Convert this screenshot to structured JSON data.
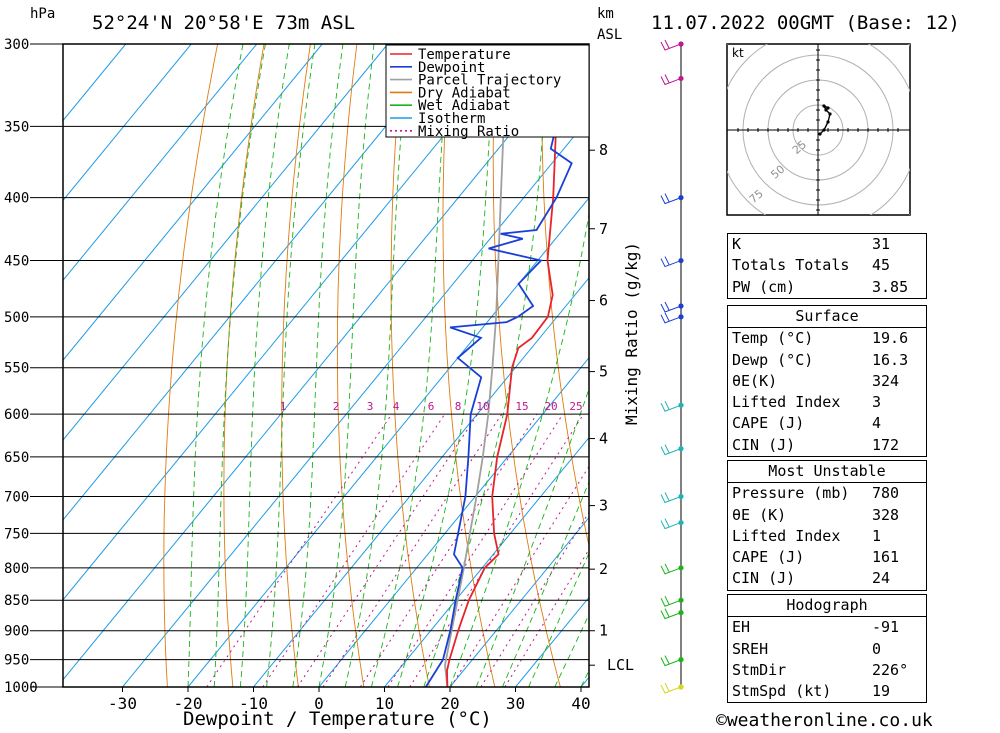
{
  "header": {
    "units_left": "hPa",
    "location": "52°24'N  20°58'E  73m  ASL",
    "units_right_top": "km",
    "units_right_bottom": "ASL",
    "datetime": "11.07.2022  00GMT  (Base: 12)"
  },
  "footer": {
    "copyright": "©weatheronline.co.uk"
  },
  "colors": {
    "temperature": "#e8232a",
    "dewpoint": "#1a3fd6",
    "parcel": "#a0a0a0",
    "dry_adiabat": "#e07b10",
    "wet_adiabat": "#18b418",
    "isotherm": "#1e9be6",
    "mixing_ratio": "#c0178f"
  },
  "chart_data": [
    {
      "type": "line",
      "name": "skew-T log-P diagram",
      "xlabel": "Dewpoint / Temperature (°C)",
      "ylabel": "hPa",
      "right_axis_label": "km ASL",
      "mixing_ratio_label": "Mixing Ratio (g/kg)",
      "xlim": [
        -40,
        40
      ],
      "x_ticks": [
        -30,
        -20,
        -10,
        0,
        10,
        20,
        30,
        40
      ],
      "y_scale": "log",
      "ylim": [
        1000,
        300
      ],
      "pressure_levels": [
        300,
        350,
        400,
        450,
        500,
        550,
        600,
        650,
        700,
        750,
        800,
        850,
        900,
        950,
        1000
      ],
      "height_ticks_km": [
        {
          "label": "1",
          "p": 900
        },
        {
          "label": "2",
          "p": 802
        },
        {
          "label": "3",
          "p": 712
        },
        {
          "label": "4",
          "p": 628
        },
        {
          "label": "5",
          "p": 554
        },
        {
          "label": "6",
          "p": 485
        },
        {
          "label": "7",
          "p": 424
        },
        {
          "label": "8",
          "p": 366
        }
      ],
      "lcl": {
        "label": "LCL",
        "p": 960
      },
      "mixing_ratio_labels": [
        "1",
        "2",
        "3",
        "4",
        "6",
        "8",
        "10",
        "15",
        "20",
        "25"
      ],
      "legend": [
        "Temperature",
        "Dewpoint",
        "Parcel Trajectory",
        "Dry Adiabat",
        "Wet Adiabat",
        "Isotherm",
        "Mixing Ratio"
      ],
      "series": [
        {
          "name": "Temperature",
          "points": [
            {
              "p": 1000,
              "t": 19.6
            },
            {
              "p": 970,
              "t": 17.5
            },
            {
              "p": 950,
              "t": 16.5
            },
            {
              "p": 900,
              "t": 14.2
            },
            {
              "p": 850,
              "t": 12.0
            },
            {
              "p": 800,
              "t": 10.4
            },
            {
              "p": 780,
              "t": 10.8
            },
            {
              "p": 750,
              "t": 7.5
            },
            {
              "p": 700,
              "t": 2.6
            },
            {
              "p": 650,
              "t": -1.6
            },
            {
              "p": 600,
              "t": -5.4
            },
            {
              "p": 550,
              "t": -10.5
            },
            {
              "p": 530,
              "t": -12.0
            },
            {
              "p": 520,
              "t": -11.2
            },
            {
              "p": 500,
              "t": -11.4
            },
            {
              "p": 480,
              "t": -13.4
            },
            {
              "p": 450,
              "t": -18.5
            },
            {
              "p": 400,
              "t": -25.5
            },
            {
              "p": 350,
              "t": -34.0
            },
            {
              "p": 330,
              "t": -37.0
            },
            {
              "p": 300,
              "t": -43.0
            }
          ]
        },
        {
          "name": "Dewpoint",
          "points": [
            {
              "p": 1000,
              "t": 16.3
            },
            {
              "p": 950,
              "t": 15.5
            },
            {
              "p": 900,
              "t": 13.0
            },
            {
              "p": 850,
              "t": 10.0
            },
            {
              "p": 800,
              "t": 7.0
            },
            {
              "p": 780,
              "t": 4.0
            },
            {
              "p": 750,
              "t": 2.0
            },
            {
              "p": 700,
              "t": -1.5
            },
            {
              "p": 650,
              "t": -6.0
            },
            {
              "p": 600,
              "t": -11.0
            },
            {
              "p": 560,
              "t": -14.0
            },
            {
              "p": 540,
              "t": -20.0
            },
            {
              "p": 520,
              "t": -19.0
            },
            {
              "p": 510,
              "t": -25.0
            },
            {
              "p": 505,
              "t": -17.0
            },
            {
              "p": 500,
              "t": -16.0
            },
            {
              "p": 490,
              "t": -15.0
            },
            {
              "p": 470,
              "t": -20.0
            },
            {
              "p": 450,
              "t": -19.5
            },
            {
              "p": 440,
              "t": -29.0
            },
            {
              "p": 432,
              "t": -25.0
            },
            {
              "p": 428,
              "t": -29.0
            },
            {
              "p": 425,
              "t": -24.0
            },
            {
              "p": 400,
              "t": -25.0
            },
            {
              "p": 375,
              "t": -27.0
            },
            {
              "p": 365,
              "t": -32.0
            },
            {
              "p": 350,
              "t": -34.0
            },
            {
              "p": 340,
              "t": -34.0
            },
            {
              "p": 330,
              "t": -39.0
            },
            {
              "p": 322,
              "t": -38.0
            },
            {
              "p": 300,
              "t": -52.0
            }
          ]
        },
        {
          "name": "Parcel Trajectory",
          "points": [
            {
              "p": 1000,
              "t": 19.6
            },
            {
              "p": 960,
              "t": 16.5
            },
            {
              "p": 900,
              "t": 13.2
            },
            {
              "p": 850,
              "t": 10.3
            },
            {
              "p": 800,
              "t": 7.2
            },
            {
              "p": 750,
              "t": 3.8
            },
            {
              "p": 700,
              "t": 0.2
            },
            {
              "p": 650,
              "t": -3.8
            },
            {
              "p": 600,
              "t": -8.3
            },
            {
              "p": 550,
              "t": -13.5
            },
            {
              "p": 500,
              "t": -19.3
            },
            {
              "p": 450,
              "t": -26.0
            },
            {
              "p": 400,
              "t": -33.5
            },
            {
              "p": 350,
              "t": -42.0
            },
            {
              "p": 300,
              "t": -52.0
            }
          ]
        }
      ]
    },
    {
      "type": "scatter",
      "name": "wind profile",
      "points": [
        {
          "p": 300,
          "color": "#c0178f"
        },
        {
          "p": 320,
          "color": "#c0178f"
        },
        {
          "p": 400,
          "color": "#1a3fd6"
        },
        {
          "p": 450,
          "color": "#1a3fd6"
        },
        {
          "p": 490,
          "color": "#1a3fd6"
        },
        {
          "p": 500,
          "color": "#1a3fd6"
        },
        {
          "p": 590,
          "color": "#1fb3b3"
        },
        {
          "p": 640,
          "color": "#1fb3b3"
        },
        {
          "p": 700,
          "color": "#1fb3b3"
        },
        {
          "p": 735,
          "color": "#1fb3b3"
        },
        {
          "p": 800,
          "color": "#18b418"
        },
        {
          "p": 850,
          "color": "#18b418"
        },
        {
          "p": 870,
          "color": "#18b418"
        },
        {
          "p": 950,
          "color": "#18b418"
        },
        {
          "p": 1000,
          "color": "#d6d61a"
        }
      ]
    },
    {
      "type": "line",
      "name": "hodograph",
      "unit_label": "kt",
      "ring_labels": [
        "25",
        "50",
        "75"
      ],
      "points": [
        {
          "u": 1,
          "v": -2
        },
        {
          "u": 3,
          "v": 0
        },
        {
          "u": 5,
          "v": 4
        },
        {
          "u": 6,
          "v": 8
        },
        {
          "u": 4,
          "v": 10
        },
        {
          "u": 3,
          "v": 12
        },
        {
          "u": 5,
          "v": 11
        }
      ]
    }
  ],
  "indices": {
    "general": [
      {
        "label": "K",
        "value": "31"
      },
      {
        "label": "Totals Totals",
        "value": "45"
      },
      {
        "label": "PW (cm)",
        "value": "3.85"
      }
    ],
    "surface": {
      "title": "Surface",
      "rows": [
        {
          "label": "Temp (°C)",
          "value": "19.6"
        },
        {
          "label": "Dewp (°C)",
          "value": "16.3"
        },
        {
          "label": "θE(K)",
          "value": "324"
        },
        {
          "label": "Lifted Index",
          "value": "3"
        },
        {
          "label": "CAPE (J)",
          "value": "4"
        },
        {
          "label": "CIN (J)",
          "value": "172"
        }
      ]
    },
    "most_unstable": {
      "title": "Most Unstable",
      "rows": [
        {
          "label": "Pressure (mb)",
          "value": "780"
        },
        {
          "label": "θE (K)",
          "value": "328"
        },
        {
          "label": "Lifted Index",
          "value": "1"
        },
        {
          "label": "CAPE (J)",
          "value": "161"
        },
        {
          "label": "CIN (J)",
          "value": "24"
        }
      ]
    },
    "hodograph": {
      "title": "Hodograph",
      "rows": [
        {
          "label": "EH",
          "value": "-91"
        },
        {
          "label": "SREH",
          "value": "0"
        },
        {
          "label": "StmDir",
          "value": "226°"
        },
        {
          "label": "StmSpd (kt)",
          "value": "19"
        }
      ]
    }
  }
}
